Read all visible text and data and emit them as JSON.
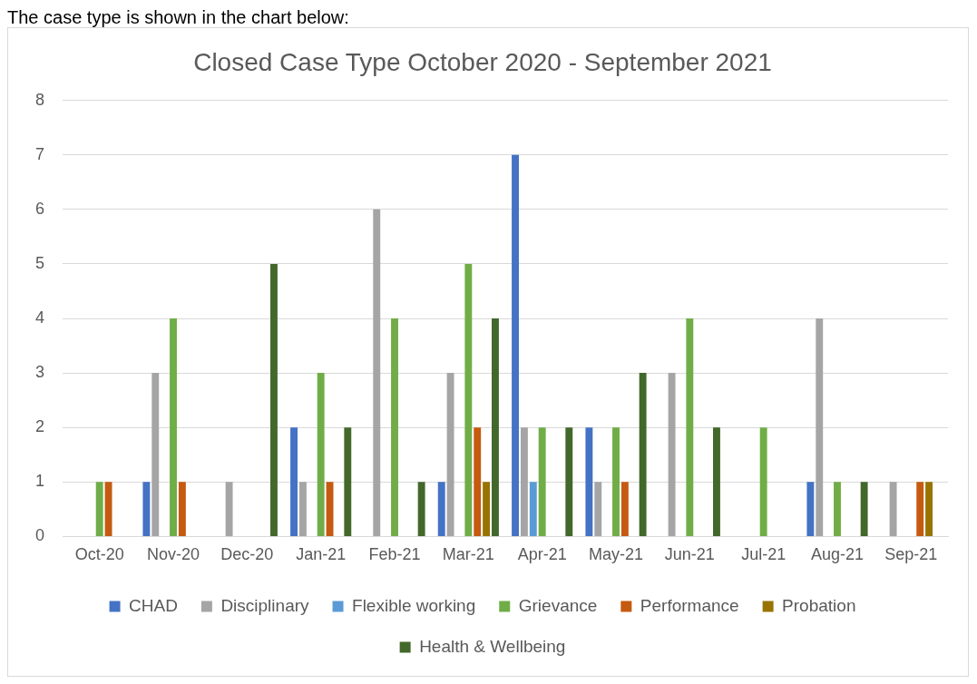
{
  "chart_data": {
    "type": "bar",
    "title": "Closed Case Type October 2020 - September 2021",
    "annotations": [
      "The case type is shown in the chart below:"
    ],
    "categories": [
      "Oct-20",
      "Nov-20",
      "Dec-20",
      "Jan-21",
      "Feb-21",
      "Mar-21",
      "Apr-21",
      "May-21",
      "Jun-21",
      "Jul-21",
      "Aug-21",
      "Sep-21"
    ],
    "series": [
      {
        "name": "CHAD",
        "color": "#4472c4",
        "values": [
          0,
          1,
          0,
          2,
          0,
          1,
          7,
          2,
          0,
          0,
          1,
          0
        ]
      },
      {
        "name": "Disciplinary",
        "color": "#a5a5a5",
        "values": [
          0,
          3,
          1,
          1,
          6,
          3,
          2,
          1,
          3,
          0,
          4,
          1
        ]
      },
      {
        "name": "Flexible working",
        "color": "#5b9bd5",
        "values": [
          0,
          0,
          0,
          0,
          0,
          0,
          1,
          0,
          0,
          0,
          0,
          0
        ]
      },
      {
        "name": "Grievance",
        "color": "#70ad47",
        "values": [
          1,
          4,
          0,
          3,
          4,
          5,
          2,
          2,
          4,
          2,
          1,
          0
        ]
      },
      {
        "name": "Performance",
        "color": "#c55a11",
        "values": [
          1,
          1,
          0,
          1,
          0,
          2,
          0,
          1,
          0,
          0,
          0,
          1
        ]
      },
      {
        "name": "Probation",
        "color": "#997300",
        "values": [
          0,
          0,
          0,
          0,
          0,
          1,
          0,
          0,
          0,
          0,
          0,
          1
        ]
      },
      {
        "name": "Health & Wellbeing",
        "color": "#43682b",
        "values": [
          0,
          0,
          5,
          2,
          1,
          4,
          2,
          3,
          2,
          0,
          1,
          0
        ]
      }
    ],
    "ylim": [
      0,
      8
    ],
    "yticks": [
      0,
      1,
      2,
      3,
      4,
      5,
      6,
      7,
      8
    ],
    "grid": "y",
    "legend": "bottom"
  }
}
